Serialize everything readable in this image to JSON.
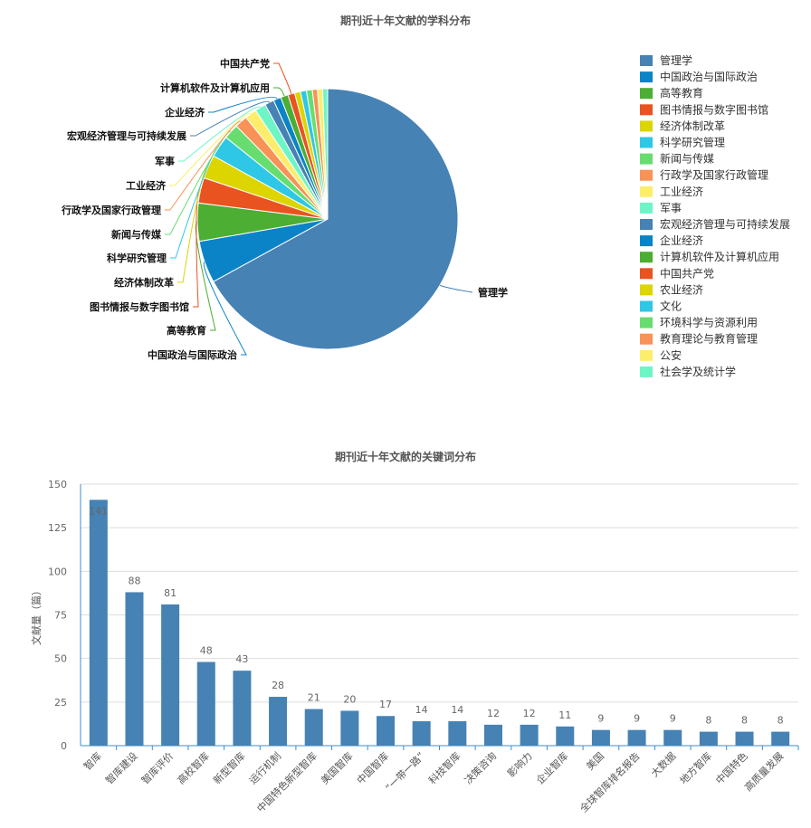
{
  "chart_data": [
    {
      "type": "pie",
      "title": "期刊近十年文献的学科分布",
      "legend_position": "right",
      "slices": [
        {
          "label": "管理学",
          "value": 640,
          "color": "#4682b4"
        },
        {
          "label": "中国政治与国际政治",
          "value": 50,
          "color": "#0a84c6"
        },
        {
          "label": "高等教育",
          "value": 45,
          "color": "#4cae33"
        },
        {
          "label": "图书情报与数字图书馆",
          "value": 30,
          "color": "#e8531f"
        },
        {
          "label": "经济体制改革",
          "value": 28,
          "color": "#dcd500"
        },
        {
          "label": "科学研究管理",
          "value": 26,
          "color": "#2ec7e6"
        },
        {
          "label": "新闻与传媒",
          "value": 18,
          "color": "#67dd70"
        },
        {
          "label": "行政学及国家行政管理",
          "value": 15,
          "color": "#f99256"
        },
        {
          "label": "工业经济",
          "value": 14,
          "color": "#fcee6b"
        },
        {
          "label": "军事",
          "value": 13,
          "color": "#6df5c6"
        },
        {
          "label": "宏观经济管理与可持续发展",
          "value": 11,
          "color": "#4682b4"
        },
        {
          "label": "企业经济",
          "value": 9,
          "color": "#0a84c6"
        },
        {
          "label": "计算机软件及计算机应用",
          "value": 9,
          "color": "#4cae33"
        },
        {
          "label": "中国共产党",
          "value": 8,
          "color": "#e8531f"
        },
        {
          "label": "农业经济",
          "value": 7,
          "color": "#dcd500"
        },
        {
          "label": "文化",
          "value": 7,
          "color": "#2ec7e6"
        },
        {
          "label": "环境科学与资源利用",
          "value": 7,
          "color": "#67dd70"
        },
        {
          "label": "教育理论与教育管理",
          "value": 6,
          "color": "#f99256"
        },
        {
          "label": "公安",
          "value": 6,
          "color": "#fcee6b"
        },
        {
          "label": "社会学及统计学",
          "value": 6,
          "color": "#6df5c6"
        }
      ],
      "visible_labels": [
        "管理学",
        "中国政治与国际政治",
        "高等教育",
        "图书情报与数字图书馆",
        "经济体制改革",
        "科学研究管理",
        "新闻与传媒",
        "行政学及国家行政管理",
        "工业经济",
        "军事",
        "宏观经济管理与可持续发展",
        "企业经济",
        "计算机软件及计算机应用",
        "中国共产党"
      ]
    },
    {
      "type": "bar",
      "title": "期刊近十年文献的关键词分布",
      "ylabel": "文献量（篇）",
      "xlabel": "",
      "ylim": [
        0,
        150
      ],
      "yticks": [
        0,
        25,
        50,
        75,
        100,
        125,
        150
      ],
      "grid": true,
      "bar_color": "#4682b4",
      "categories": [
        "智库",
        "智库建设",
        "智库评价",
        "高校智库",
        "新型智库",
        "运行机制",
        "中国特色新型智库",
        "美国智库",
        "中国智库",
        "“一带一路”",
        "科技智库",
        "决策咨询",
        "影响力",
        "企业智库",
        "美国",
        "全球智库排名报告",
        "大数据",
        "地方智库",
        "中国特色",
        "高质量发展"
      ],
      "values": [
        141,
        88,
        81,
        48,
        43,
        28,
        21,
        20,
        17,
        14,
        14,
        12,
        12,
        11,
        9,
        9,
        9,
        8,
        8,
        8
      ]
    }
  ]
}
